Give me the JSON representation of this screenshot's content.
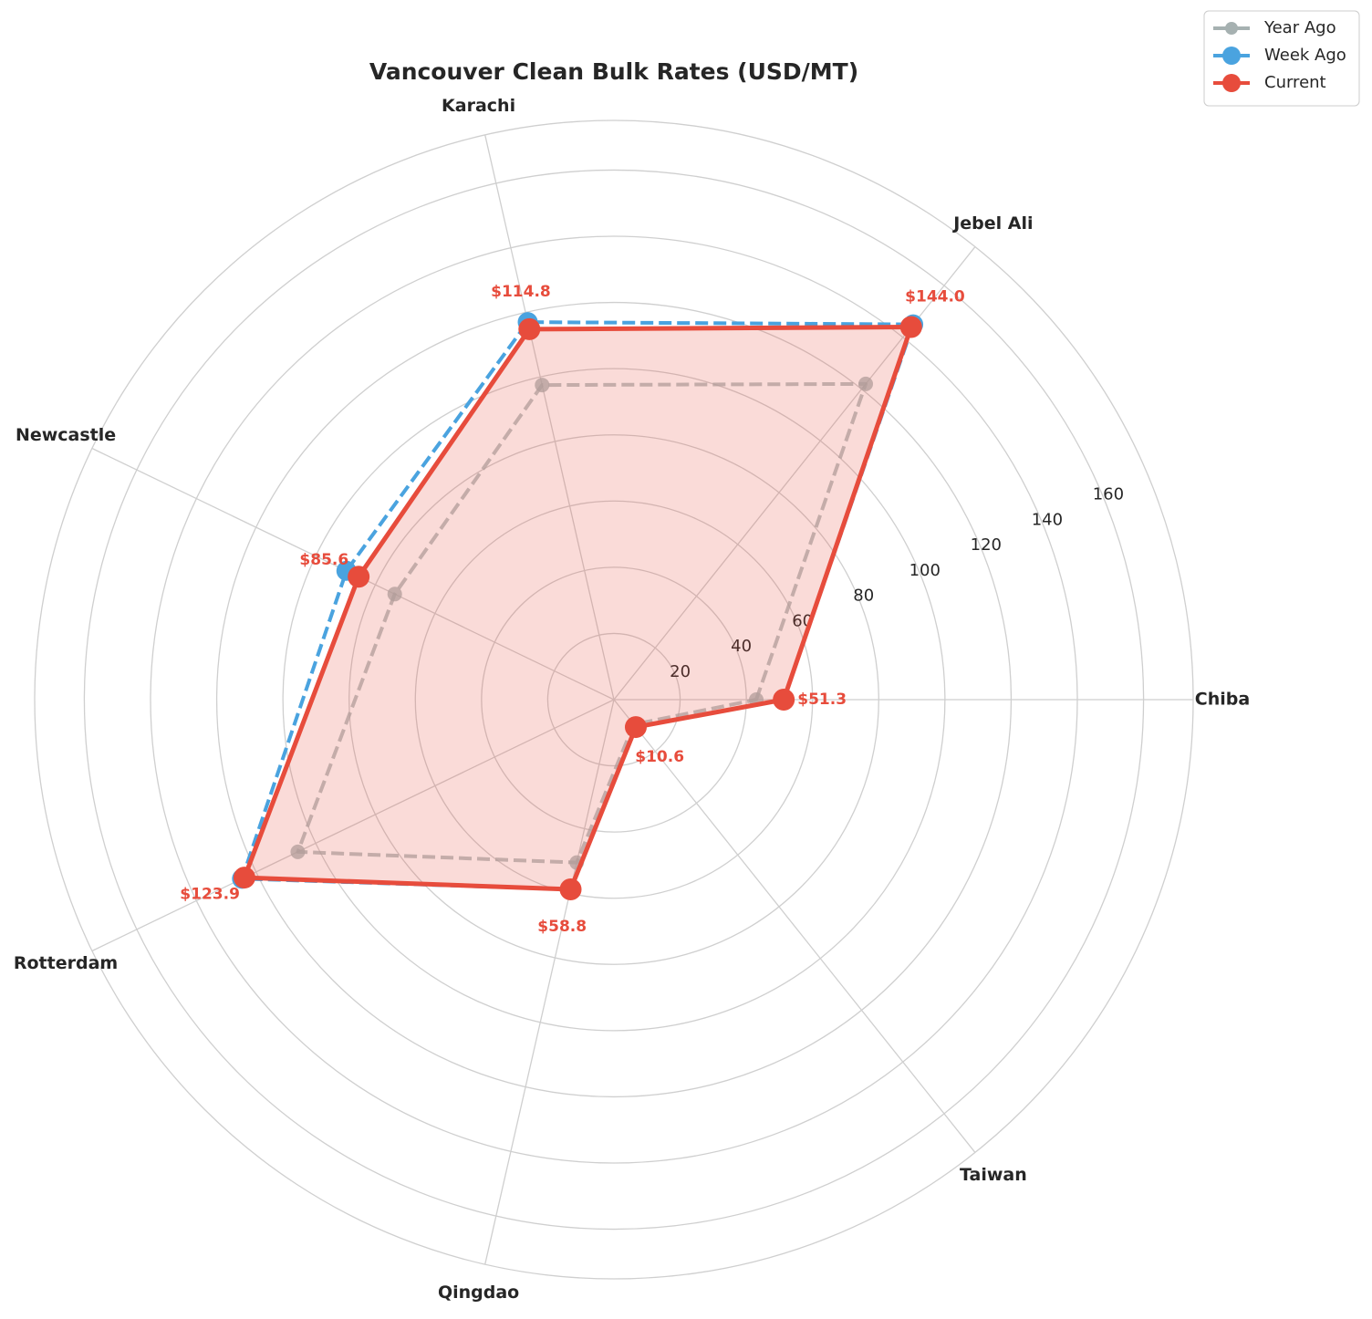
{
  "chart_data": {
    "type": "radar",
    "title": "Vancouver Clean Bulk Rates (USD/MT)",
    "categories": [
      "Chiba",
      "Jebel Ali",
      "Karachi",
      "Newcastle",
      "Rotterdam",
      "Qingdao",
      "Taiwan"
    ],
    "series": [
      {
        "name": "Year Ago",
        "color": "#a6b1b1",
        "values": [
          43,
          122,
          97.5,
          73.5,
          106,
          50.5,
          9.6
        ]
      },
      {
        "name": "Week Ago",
        "color": "#4aa3df",
        "values": [
          51.3,
          145,
          117,
          89.7,
          124.7,
          58.8,
          10.6
        ]
      },
      {
        "name": "Current",
        "color": "#e74c3c",
        "values": [
          51.3,
          144.0,
          114.8,
          85.6,
          123.9,
          58.8,
          10.6
        ],
        "value_labels": [
          "$51.3",
          "$144.0",
          "$114.8",
          "$85.6",
          "$123.9",
          "$58.8",
          "$10.6"
        ]
      }
    ],
    "ylim": [
      0,
      175
    ],
    "yticks": [
      20,
      40,
      60,
      80,
      100,
      120,
      140,
      160
    ],
    "grid": true,
    "legend": "upper right"
  }
}
